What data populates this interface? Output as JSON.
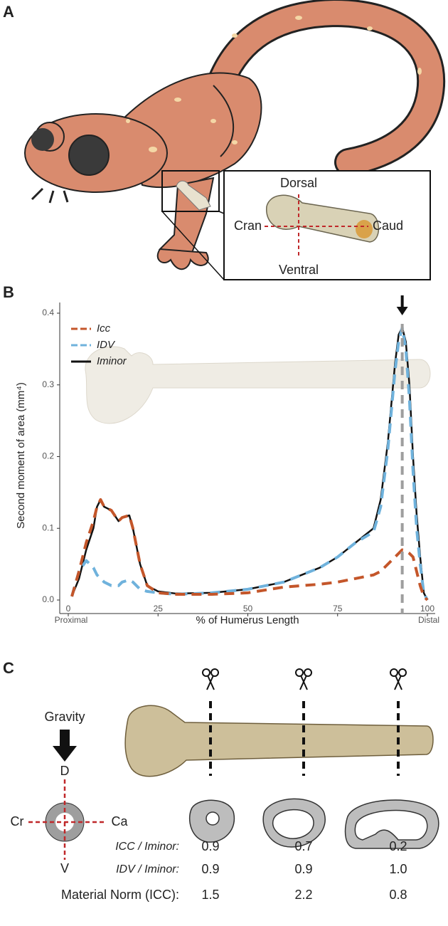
{
  "panel_a": {
    "label": "A",
    "dorsal": "Dorsal",
    "ventral": "Ventral",
    "cranial": "Cran",
    "caudal": "Caud"
  },
  "chart_data": {
    "type": "line",
    "label": "B",
    "ylabel": "Second moment of area (mm⁴)",
    "xlabel": "% of Humerus Length",
    "x_start_label": "Proximal",
    "x_end_label": "Distal",
    "peak_x": 93,
    "xlim": [
      0,
      100
    ],
    "xticks": [
      0,
      25,
      50,
      75,
      100
    ],
    "ylim": [
      0,
      0.4
    ],
    "yticks": [
      {
        "value": 0,
        "label": "0.0"
      },
      0.1,
      0.2,
      0.3,
      0.4
    ],
    "x": [
      1,
      3,
      5,
      7,
      8,
      9,
      10,
      12,
      14,
      15,
      17,
      18,
      20,
      22,
      25,
      30,
      40,
      50,
      60,
      70,
      75,
      80,
      85,
      87,
      89,
      91,
      92,
      93,
      94,
      95,
      96,
      97,
      98,
      99,
      100
    ],
    "series": [
      {
        "name": "Icc",
        "color": "#c4562a",
        "style": "dashed",
        "values": [
          0.005,
          0.04,
          0.08,
          0.11,
          0.13,
          0.14,
          0.13,
          0.125,
          0.11,
          0.115,
          0.118,
          0.1,
          0.05,
          0.02,
          0.01,
          0.008,
          0.008,
          0.01,
          0.018,
          0.022,
          0.025,
          0.03,
          0.035,
          0.04,
          0.05,
          0.06,
          0.065,
          0.07,
          0.068,
          0.065,
          0.06,
          0.04,
          0.02,
          0.005,
          0
        ]
      },
      {
        "name": "IDV",
        "color": "#6fb2dc",
        "style": "dashed",
        "values": [
          0.005,
          0.04,
          0.055,
          0.045,
          0.035,
          0.03,
          0.025,
          0.02,
          0.02,
          0.025,
          0.028,
          0.025,
          0.015,
          0.012,
          0.01,
          0.008,
          0.01,
          0.015,
          0.025,
          0.045,
          0.06,
          0.08,
          0.095,
          0.13,
          0.21,
          0.32,
          0.36,
          0.38,
          0.35,
          0.28,
          0.18,
          0.1,
          0.05,
          0.01,
          0
        ]
      },
      {
        "name": "Iminor",
        "color": "#111111",
        "style": "solid",
        "values": [
          0.005,
          0.03,
          0.07,
          0.1,
          0.13,
          0.14,
          0.13,
          0.125,
          0.11,
          0.115,
          0.118,
          0.1,
          0.05,
          0.02,
          0.012,
          0.009,
          0.01,
          0.015,
          0.025,
          0.045,
          0.06,
          0.08,
          0.1,
          0.14,
          0.22,
          0.33,
          0.37,
          0.38,
          0.36,
          0.3,
          0.2,
          0.12,
          0.06,
          0.01,
          0
        ]
      }
    ]
  },
  "panel_c": {
    "label": "C",
    "gravity": "Gravity",
    "dorsal": "D",
    "ventral": "V",
    "cranial": "Cr",
    "caudal": "Ca",
    "rows": [
      {
        "label": "ICC / Iminor:",
        "values": [
          "0.9",
          "0.7",
          "0.2"
        ]
      },
      {
        "label": "IDV / Iminor:",
        "values": [
          "0.9",
          "0.9",
          "1.0"
        ]
      },
      {
        "label": "Material Norm (ICC):",
        "values": [
          "1.5",
          "2.2",
          "0.8"
        ]
      }
    ]
  }
}
